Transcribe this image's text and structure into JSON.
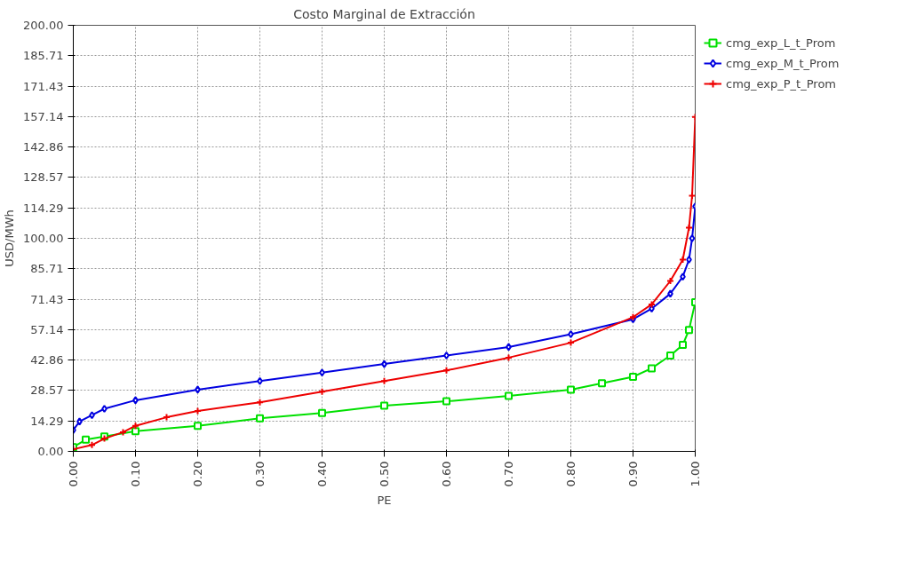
{
  "chart_data": {
    "type": "line",
    "title": "Costo Marginal de Extracción",
    "xlabel": "PE",
    "ylabel": "USD/MWh",
    "xlim": [
      0,
      1
    ],
    "ylim": [
      0,
      200
    ],
    "xticks": [
      {
        "value": 0,
        "label": "0.00"
      },
      {
        "value": 0.1,
        "label": "0.10"
      },
      {
        "value": 0.2,
        "label": "0.20"
      },
      {
        "value": 0.3,
        "label": "0.30"
      },
      {
        "value": 0.4,
        "label": "0.40"
      },
      {
        "value": 0.5,
        "label": "0.50"
      },
      {
        "value": 0.6,
        "label": "0.60"
      },
      {
        "value": 0.7,
        "label": "0.70"
      },
      {
        "value": 0.8,
        "label": "0.80"
      },
      {
        "value": 0.9,
        "label": "0.90"
      },
      {
        "value": 1,
        "label": "1.00"
      }
    ],
    "yticks": [
      {
        "value": 0,
        "label": "0.00"
      },
      {
        "value": 14.29,
        "label": "14.29"
      },
      {
        "value": 28.57,
        "label": "28.57"
      },
      {
        "value": 42.86,
        "label": "42.86"
      },
      {
        "value": 57.14,
        "label": "57.14"
      },
      {
        "value": 71.43,
        "label": "71.43"
      },
      {
        "value": 85.71,
        "label": "85.71"
      },
      {
        "value": 100,
        "label": "100.00"
      },
      {
        "value": 114.29,
        "label": "114.29"
      },
      {
        "value": 128.57,
        "label": "128.57"
      },
      {
        "value": 142.86,
        "label": "142.86"
      },
      {
        "value": 157.14,
        "label": "157.14"
      },
      {
        "value": 171.43,
        "label": "171.43"
      },
      {
        "value": 185.71,
        "label": "185.71"
      },
      {
        "value": 200,
        "label": "200.00"
      }
    ],
    "grid": true,
    "legend": "top right",
    "line_style": "solid",
    "series": [
      {
        "name": "cmg_exp_L_t_Prom",
        "color": "#00e000",
        "marker": "square",
        "x": [
          0,
          0.02,
          0.05,
          0.1,
          0.2,
          0.3,
          0.4,
          0.5,
          0.6,
          0.7,
          0.8,
          0.85,
          0.9,
          0.93,
          0.96,
          0.98,
          0.99,
          1.0
        ],
        "values": [
          2,
          5.5,
          7,
          9.5,
          12,
          15.5,
          18,
          21.5,
          23.5,
          26,
          29,
          32,
          35,
          39,
          45,
          50,
          57,
          70
        ]
      },
      {
        "name": "cmg_exp_M_t_Prom",
        "color": "#0000e0",
        "marker": "diamond",
        "x": [
          0,
          0.01,
          0.03,
          0.05,
          0.1,
          0.2,
          0.3,
          0.4,
          0.5,
          0.6,
          0.7,
          0.8,
          0.9,
          0.93,
          0.96,
          0.98,
          0.99,
          0.995,
          1.0
        ],
        "values": [
          10,
          14,
          17,
          20,
          24,
          29,
          33,
          37,
          41,
          45,
          49,
          55,
          62,
          67,
          74,
          82,
          90,
          100,
          115
        ]
      },
      {
        "name": "cmg_exp_P_t_Prom",
        "color": "#ee0000",
        "marker": "cross",
        "x": [
          0,
          0.03,
          0.05,
          0.08,
          0.1,
          0.15,
          0.2,
          0.3,
          0.4,
          0.5,
          0.6,
          0.7,
          0.8,
          0.9,
          0.93,
          0.96,
          0.98,
          0.99,
          0.995,
          1.0
        ],
        "values": [
          1,
          3,
          6,
          9,
          12,
          16,
          19,
          23,
          28,
          33,
          38,
          44,
          51,
          63,
          69,
          80,
          90,
          105,
          120,
          157
        ]
      }
    ]
  }
}
